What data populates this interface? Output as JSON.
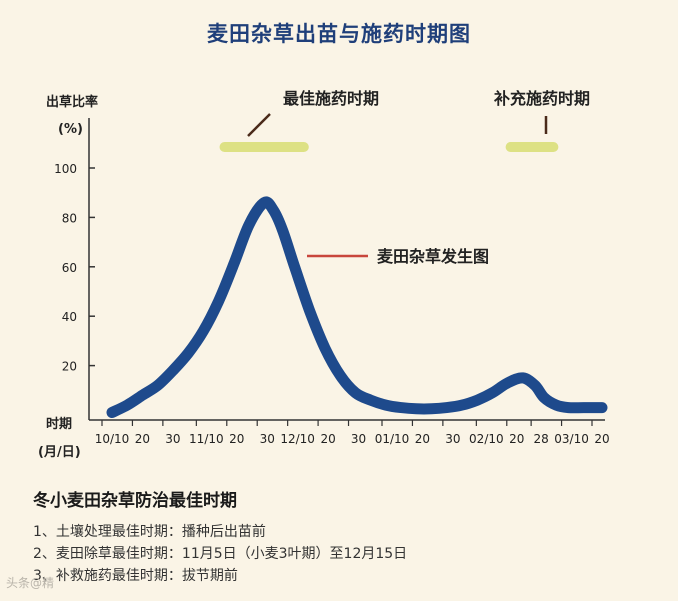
{
  "title": "麦田杂草出苗与施药时期图",
  "colors": {
    "curve": "#1e4a8c",
    "period_bar": "#dde184",
    "label_line": "#c8463c",
    "background": "#faf4e6",
    "title": "#1f3f7a"
  },
  "chart_data": {
    "type": "line",
    "ylabel_line1": "出草比率",
    "ylabel_line2": "(%)",
    "xlabel_line1": "时期",
    "xlabel_line2": "(月/日)",
    "ylim": [
      0,
      100
    ],
    "yticks": [
      "100",
      "80",
      "60",
      "40",
      "20"
    ],
    "yticks_values": [
      100,
      80,
      60,
      40,
      20
    ],
    "xticks": [
      "10/10",
      "20",
      "30",
      "11/10",
      "20",
      "30",
      "12/10",
      "20",
      "30",
      "01/10",
      "20",
      "30",
      "02/10",
      "20",
      "28",
      "03/10",
      "20"
    ],
    "x_day_index": [
      0,
      10,
      20,
      31,
      41,
      51,
      61,
      71,
      81,
      92,
      102,
      112,
      123,
      133,
      141,
      151,
      161
    ],
    "series": [
      {
        "name": "麦田杂草发生图",
        "x": [
          0,
          5,
          10,
          15,
          20,
          25,
          30,
          35,
          40,
          45,
          50,
          53,
          56,
          60,
          65,
          70,
          75,
          80,
          85,
          90,
          95,
          100,
          105,
          110,
          115,
          120,
          125,
          130,
          135,
          139,
          142,
          146,
          150,
          155,
          161
        ],
        "y": [
          1,
          4,
          8,
          12,
          18,
          25,
          34,
          46,
          61,
          77,
          86,
          83,
          75,
          60,
          42,
          27,
          16,
          9,
          6,
          4,
          3,
          2.5,
          2.5,
          3,
          4,
          6,
          9,
          13,
          15,
          12,
          7,
          4,
          3,
          3,
          3
        ]
      }
    ],
    "annotations": [
      {
        "label": "最佳施药时期",
        "x_start": 35,
        "x_end": 65
      },
      {
        "label": "补充施药时期",
        "x_start": 129,
        "x_end": 147
      }
    ],
    "grid": false,
    "legend": "inline label"
  },
  "notes": {
    "title": "冬小麦田杂草防治最佳时期",
    "items": [
      "1、土壤处理最佳时期：播种后出苗前",
      "2、麦田除草最佳时期：11月5日（小麦3叶期）至12月15日",
      "3、补救施药最佳时期：拔节期前"
    ]
  },
  "watermark": "头条@精"
}
